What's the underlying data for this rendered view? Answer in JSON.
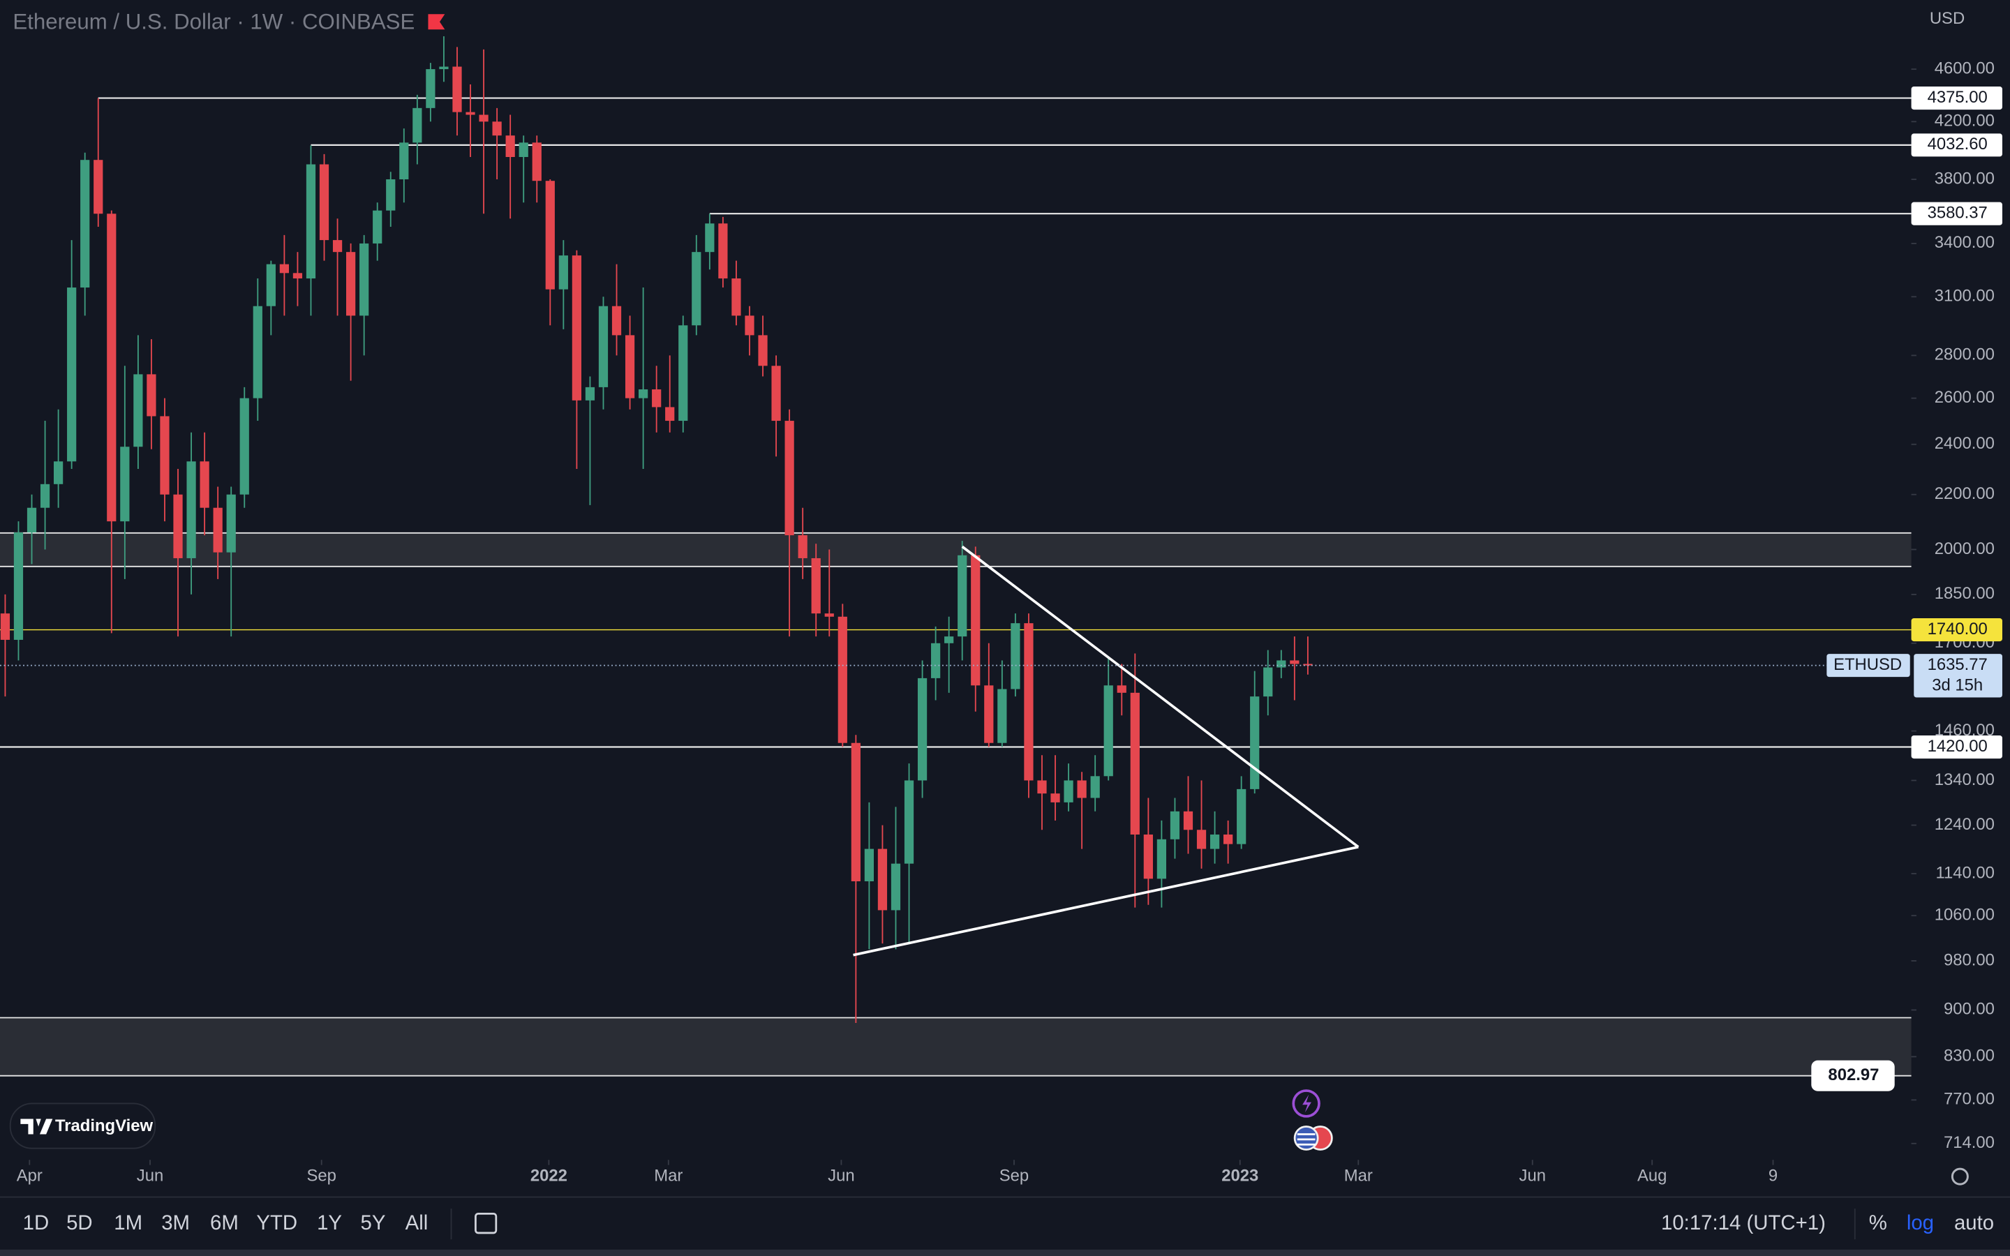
{
  "header": {
    "title": "Ethereum / U.S. Dollar · 1W · COINBASE",
    "currency": "USD"
  },
  "chart_data": {
    "type": "candlestick",
    "open": [
      1790,
      1710,
      2060,
      2150,
      2240,
      2330,
      3150,
      3930,
      3580,
      2100,
      2390,
      2710,
      2520,
      2200,
      1970,
      2330,
      2150,
      1990,
      2200,
      2600,
      3050,
      3280,
      3230,
      3200,
      3900,
      3420,
      3350,
      3000,
      3400,
      3600,
      3800,
      4050,
      4300,
      4600,
      4620,
      4270,
      4250,
      4200,
      4100,
      3950,
      4050,
      3790,
      3140,
      3330,
      2590,
      2650,
      3050,
      2900,
      2600,
      2640,
      2560,
      2500,
      2950,
      3350,
      3520,
      3200,
      3000,
      2900,
      2750,
      2500,
      2050,
      1970,
      1790,
      1780,
      1430,
      1125,
      1190,
      1070,
      1160,
      1340,
      1600,
      1700,
      1720,
      1980,
      1580,
      1430,
      1570,
      1760,
      1340,
      1310,
      1290,
      1340,
      1300,
      1350,
      1580,
      1560,
      1220,
      1130,
      1210,
      1270,
      1230,
      1190,
      1220,
      1200,
      1320,
      1550,
      1630,
      1650,
      1640
    ],
    "high": [
      1850,
      2100,
      2200,
      2500,
      2550,
      3420,
      3980,
      4375,
      3600,
      2750,
      2900,
      2880,
      2600,
      2300,
      2450,
      2450,
      2230,
      2230,
      2650,
      3200,
      3300,
      3450,
      3350,
      4030,
      3970,
      3550,
      3400,
      3450,
      3650,
      3850,
      4150,
      4400,
      4650,
      4870,
      4780,
      4480,
      4760,
      4300,
      4250,
      4100,
      4100,
      3800,
      3420,
      3360,
      2700,
      3100,
      3280,
      3000,
      3150,
      2750,
      2800,
      3000,
      3450,
      3580,
      3560,
      3300,
      3050,
      3000,
      2800,
      2550,
      2150,
      2020,
      2000,
      1820,
      1450,
      1290,
      1240,
      1280,
      1380,
      1650,
      1750,
      1780,
      2030,
      2010,
      1700,
      1650,
      1790,
      1790,
      1400,
      1400,
      1380,
      1360,
      1400,
      1660,
      1640,
      1670,
      1300,
      1250,
      1300,
      1350,
      1340,
      1270,
      1250,
      1350,
      1620,
      1680,
      1680,
      1720,
      1720
    ],
    "low": [
      1550,
      1650,
      1950,
      2000,
      2150,
      2300,
      3000,
      3500,
      1730,
      1900,
      2300,
      2380,
      2100,
      1720,
      1850,
      2050,
      1900,
      1720,
      2150,
      2500,
      2900,
      3000,
      3050,
      3000,
      3300,
      3000,
      2680,
      2800,
      3300,
      3500,
      3650,
      3900,
      4200,
      4500,
      4100,
      3950,
      3580,
      3800,
      3550,
      3650,
      3650,
      2950,
      2930,
      2300,
      2160,
      2550,
      2800,
      2550,
      2300,
      2450,
      2450,
      2450,
      2900,
      3250,
      3150,
      2950,
      2800,
      2700,
      2350,
      1720,
      1900,
      1720,
      1720,
      1420,
      880,
      1000,
      1010,
      1000,
      1010,
      1300,
      1540,
      1560,
      1650,
      1510,
      1420,
      1420,
      1550,
      1300,
      1230,
      1250,
      1270,
      1190,
      1270,
      1340,
      1500,
      1075,
      1080,
      1075,
      1170,
      1180,
      1150,
      1160,
      1160,
      1190,
      1310,
      1500,
      1600,
      1540,
      1610
    ],
    "close": [
      1710,
      2060,
      2150,
      2240,
      2330,
      3150,
      3930,
      3580,
      2100,
      2390,
      2710,
      2520,
      2200,
      1970,
      2330,
      2150,
      1990,
      2200,
      2600,
      3050,
      3280,
      3230,
      3200,
      3900,
      3420,
      3350,
      3000,
      3400,
      3600,
      3800,
      4050,
      4300,
      4600,
      4620,
      4270,
      4250,
      4200,
      4100,
      3950,
      4050,
      3790,
      3140,
      3330,
      2590,
      2650,
      3050,
      2900,
      2600,
      2640,
      2560,
      2500,
      2950,
      3350,
      3520,
      3200,
      3000,
      2900,
      2750,
      2500,
      2050,
      1970,
      1790,
      1780,
      1430,
      1125,
      1190,
      1070,
      1160,
      1340,
      1600,
      1700,
      1720,
      1980,
      1580,
      1430,
      1570,
      1760,
      1340,
      1310,
      1290,
      1340,
      1300,
      1350,
      1580,
      1560,
      1220,
      1130,
      1210,
      1270,
      1230,
      1190,
      1220,
      1200,
      1320,
      1550,
      1630,
      1650,
      1640,
      1635.77
    ],
    "up_color": "#3f9e80",
    "down_color": "#e5474f",
    "log_scale": true,
    "ylim": [
      694,
      5186
    ],
    "yticks": [
      {
        "value": 4600,
        "label": "4600.00"
      },
      {
        "value": 4200,
        "label": "4200.00"
      },
      {
        "value": 3800,
        "label": "3800.00"
      },
      {
        "value": 3400,
        "label": "3400.00"
      },
      {
        "value": 3100,
        "label": "3100.00"
      },
      {
        "value": 2800,
        "label": "2800.00"
      },
      {
        "value": 2600,
        "label": "2600.00"
      },
      {
        "value": 2400,
        "label": "2400.00"
      },
      {
        "value": 2200,
        "label": "2200.00"
      },
      {
        "value": 2000,
        "label": "2000.00"
      },
      {
        "value": 1850,
        "label": "1850.00"
      },
      {
        "value": 1700,
        "label": "1700.00"
      },
      {
        "value": 1460,
        "label": "1460.00"
      },
      {
        "value": 1340,
        "label": "1340.00"
      },
      {
        "value": 1240,
        "label": "1240.00"
      },
      {
        "value": 1140,
        "label": "1140.00"
      },
      {
        "value": 1060,
        "label": "1060.00"
      },
      {
        "value": 980,
        "label": "980.00"
      },
      {
        "value": 900,
        "label": "900.00"
      },
      {
        "value": 830,
        "label": "830.00"
      },
      {
        "value": 770,
        "label": "770.00"
      },
      {
        "value": 714,
        "label": "714.00"
      }
    ],
    "xlim": [
      -0.39,
      143.4
    ],
    "xticks": [
      {
        "value": 1.83,
        "label": "Apr"
      },
      {
        "value": 10.9,
        "label": "Jun"
      },
      {
        "value": 23.8,
        "label": "Sep"
      },
      {
        "value": 40.9,
        "label": "2022"
      },
      {
        "value": 49.9,
        "label": "Mar"
      },
      {
        "value": 62.9,
        "label": "Jun"
      },
      {
        "value": 75.9,
        "label": "Sep"
      },
      {
        "value": 92.9,
        "label": "2023"
      },
      {
        "value": 101.8,
        "label": "Mar"
      },
      {
        "value": 114.9,
        "label": "Jun"
      },
      {
        "value": 123.9,
        "label": "Aug"
      },
      {
        "value": 133,
        "label": "9"
      }
    ],
    "levels": [
      {
        "value": 4375,
        "label": "4375.00",
        "from": 7
      },
      {
        "value": 4032.6,
        "label": "4032.60",
        "from": 23
      },
      {
        "value": 3580.37,
        "label": "3580.37",
        "from": 53
      },
      {
        "value": 1740,
        "label": "1740.00",
        "color": "#f5e33c"
      },
      {
        "value": 1420,
        "label": "1420.00"
      }
    ],
    "zones": [
      {
        "top": 2058,
        "bottom": 1942
      },
      {
        "top": 888,
        "bottom": 802.97,
        "bottom_label": "802.97"
      }
    ],
    "trendlines": [
      {
        "x": [
          72,
          101.8
        ],
        "y": [
          2010,
          1194
        ]
      },
      {
        "x": [
          63.8,
          101.8
        ],
        "y": [
          990,
          1194
        ]
      }
    ],
    "last_price": {
      "name": "ETHUSD",
      "value": 1635.77,
      "countdown": "3d 15h"
    }
  },
  "branding": "TradingView",
  "toolbar": {
    "ranges": [
      "1D",
      "5D",
      "1M",
      "3M",
      "6M",
      "YTD",
      "1Y",
      "5Y",
      "All"
    ],
    "clock": "10:17:14 (UTC+1)",
    "options": [
      "%",
      "log",
      "auto"
    ]
  }
}
